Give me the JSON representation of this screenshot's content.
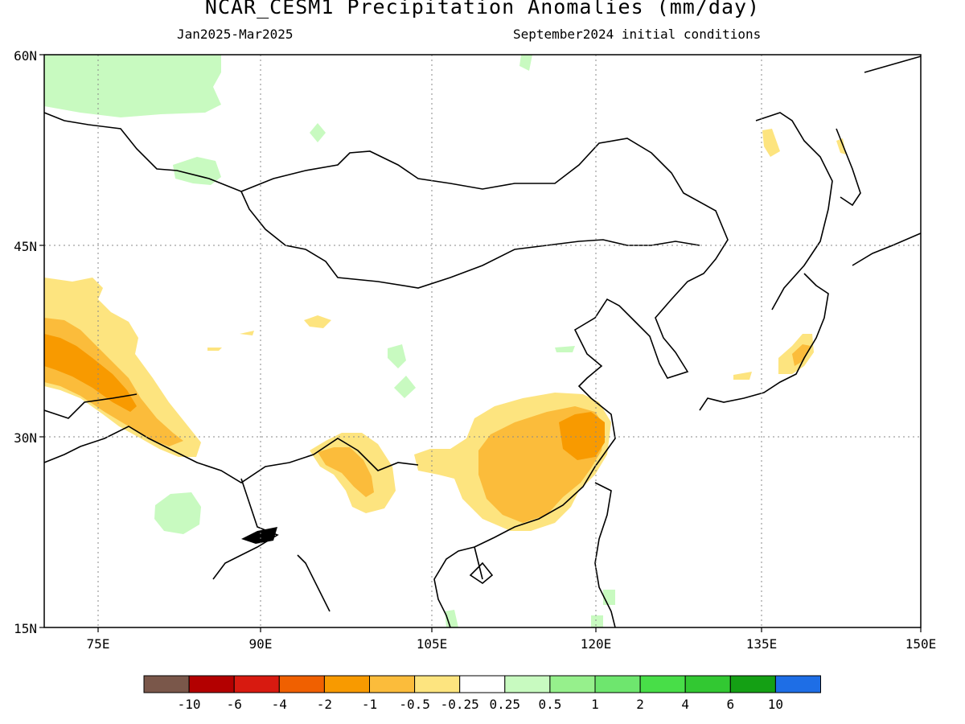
{
  "header": {
    "title": "NCAR_CESM1 Precipitation Anomalies (mm/day)",
    "period": "Jan2025-Mar2025",
    "initial_conditions": "September2024 initial conditions"
  },
  "map": {
    "lat_labels": [
      "60N",
      "45N",
      "30N",
      "15N"
    ],
    "lon_labels": [
      "75E",
      "90E",
      "105E",
      "120E",
      "135E",
      "150E"
    ],
    "lon_range": [
      68,
      150
    ],
    "lat_range": [
      15,
      60
    ],
    "grid": true
  },
  "colorbar": {
    "labels": [
      "-10",
      "-6",
      "-4",
      "-2",
      "-1",
      "-0.5",
      "-0.25",
      "0.25",
      "0.5",
      "1",
      "2",
      "4",
      "6",
      "10"
    ],
    "colors": [
      "#7a574a",
      "#b30000",
      "#d81a10",
      "#f06000",
      "#f89a00",
      "#fbbc3b",
      "#fde47f",
      "#ffffff",
      "#c8fac0",
      "#96f08c",
      "#6ee66e",
      "#48de48",
      "#32c832",
      "#14a014",
      "#1e6ee6"
    ]
  },
  "colors": {
    "dry_light": "#fde47f",
    "dry_medium": "#fbbc3b",
    "dry_strong": "#f89a00",
    "wet_light": "#c8fac0"
  }
}
